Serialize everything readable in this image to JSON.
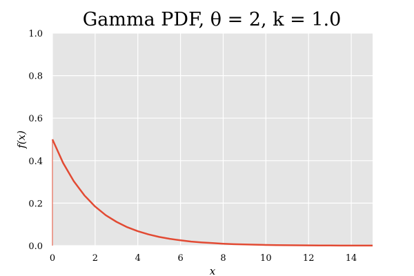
{
  "chart_data": {
    "type": "line",
    "title": "Gamma PDF, θ = 2, k = 1.0",
    "xlabel": "x",
    "ylabel": "f(x)",
    "xlim": [
      0,
      15
    ],
    "ylim": [
      0,
      1.0
    ],
    "x_ticks": [
      "0",
      "2",
      "4",
      "6",
      "8",
      "10",
      "12",
      "14"
    ],
    "y_ticks": [
      "0.0",
      "0.2",
      "0.4",
      "0.6",
      "0.8",
      "1.0"
    ],
    "grid": true,
    "colors": {
      "line": "#E24A33",
      "plot_bg": "#E5E5E5",
      "grid": "#FFFFFF"
    },
    "series": [
      {
        "x": [
          0,
          0.5,
          1,
          1.5,
          2,
          2.5,
          3,
          3.5,
          4,
          4.5,
          5,
          5.5,
          6,
          6.5,
          7,
          7.5,
          8,
          8.5,
          9,
          9.5,
          10,
          10.5,
          11,
          11.5,
          12,
          12.5,
          13,
          13.5,
          14,
          14.5,
          15
        ],
        "values": [
          0.5,
          0.389,
          0.303,
          0.236,
          0.184,
          0.143,
          0.112,
          0.087,
          0.068,
          0.053,
          0.041,
          0.032,
          0.025,
          0.019,
          0.015,
          0.012,
          0.009,
          0.007,
          0.0056,
          0.0043,
          0.0034,
          0.0026,
          0.002,
          0.0016,
          0.0012,
          0.001,
          0.00075,
          0.00059,
          0.00046,
          0.00036,
          0.00028
        ]
      }
    ]
  }
}
